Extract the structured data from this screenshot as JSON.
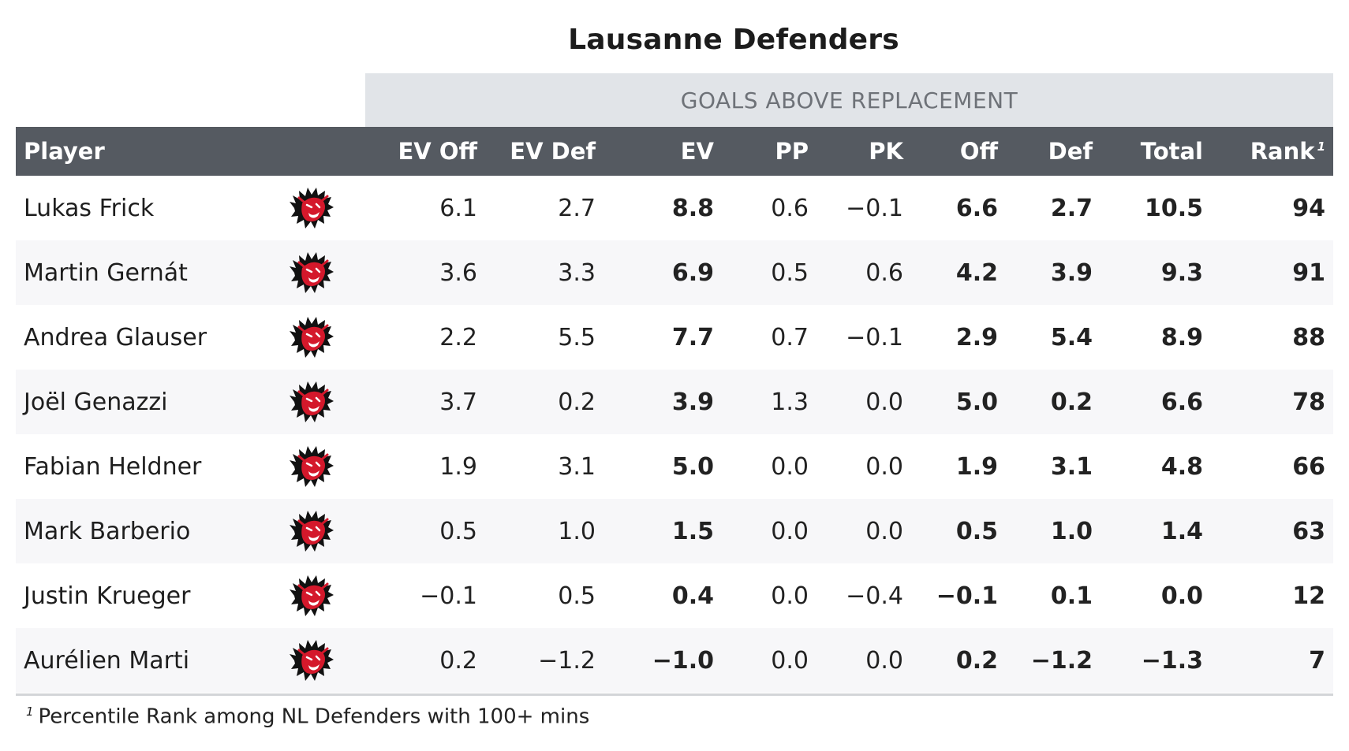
{
  "title": "Lausanne Defenders",
  "spanner_label": "GOALS ABOVE REPLACEMENT",
  "columns": {
    "player": "Player",
    "ev_off": "EV Off",
    "ev_def": "EV Def",
    "ev": "EV",
    "pp": "PP",
    "pk": "PK",
    "off": "Off",
    "def": "Def",
    "total": "Total",
    "rank": "Rank",
    "rank_footnote_mark": "1"
  },
  "team_logo_icon": "lausanne-lion-logo-icon",
  "colors": {
    "header_bg": "#555a61",
    "spanner_bg": "#e1e4e8",
    "logo_red": "#d4182b"
  },
  "rows": [
    {
      "player": "Lukas Frick",
      "ev_off": "6.1",
      "ev_def": "2.7",
      "ev": "8.8",
      "pp": "0.6",
      "pk": "−0.1",
      "off": "6.6",
      "def": "2.7",
      "total": "10.5",
      "rank": "94"
    },
    {
      "player": "Martin Gernát",
      "ev_off": "3.6",
      "ev_def": "3.3",
      "ev": "6.9",
      "pp": "0.5",
      "pk": "0.6",
      "off": "4.2",
      "def": "3.9",
      "total": "9.3",
      "rank": "91"
    },
    {
      "player": "Andrea Glauser",
      "ev_off": "2.2",
      "ev_def": "5.5",
      "ev": "7.7",
      "pp": "0.7",
      "pk": "−0.1",
      "off": "2.9",
      "def": "5.4",
      "total": "8.9",
      "rank": "88"
    },
    {
      "player": "Joël Genazzi",
      "ev_off": "3.7",
      "ev_def": "0.2",
      "ev": "3.9",
      "pp": "1.3",
      "pk": "0.0",
      "off": "5.0",
      "def": "0.2",
      "total": "6.6",
      "rank": "78"
    },
    {
      "player": "Fabian Heldner",
      "ev_off": "1.9",
      "ev_def": "3.1",
      "ev": "5.0",
      "pp": "0.0",
      "pk": "0.0",
      "off": "1.9",
      "def": "3.1",
      "total": "4.8",
      "rank": "66"
    },
    {
      "player": "Mark Barberio",
      "ev_off": "0.5",
      "ev_def": "1.0",
      "ev": "1.5",
      "pp": "0.0",
      "pk": "0.0",
      "off": "0.5",
      "def": "1.0",
      "total": "1.4",
      "rank": "63"
    },
    {
      "player": "Justin Krueger",
      "ev_off": "−0.1",
      "ev_def": "0.5",
      "ev": "0.4",
      "pp": "0.0",
      "pk": "−0.4",
      "off": "−0.1",
      "def": "0.1",
      "total": "0.0",
      "rank": "12"
    },
    {
      "player": "Aurélien Marti",
      "ev_off": "0.2",
      "ev_def": "−1.2",
      "ev": "−1.0",
      "pp": "0.0",
      "pk": "0.0",
      "off": "0.2",
      "def": "−1.2",
      "total": "−1.3",
      "rank": "7"
    }
  ],
  "footnote": {
    "mark": "1",
    "text": "Percentile Rank among NL Defenders with 100+ mins"
  }
}
